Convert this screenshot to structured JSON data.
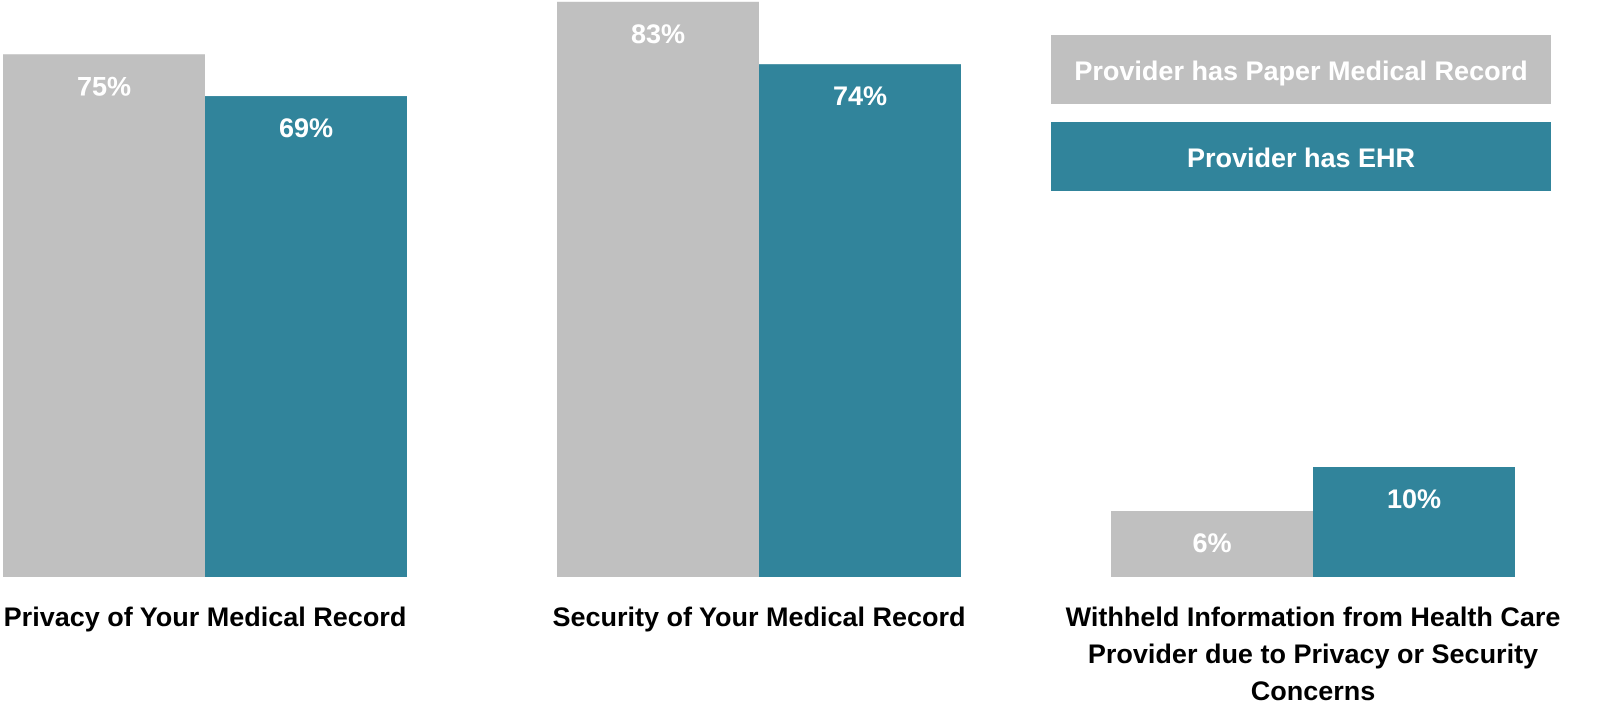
{
  "chart_data": {
    "type": "bar",
    "title": "",
    "xlabel": "",
    "ylabel": "",
    "categories": [
      [
        "Privacy of Your Medical Record"
      ],
      [
        "Security of Your Medical Record"
      ],
      [
        "Withheld Information from Health Care",
        "Provider due to Privacy or Security",
        "Concerns"
      ]
    ],
    "series": [
      {
        "name": "Provider has Paper Medical Record",
        "color": "#c0c0c0",
        "values": [
          75,
          83,
          6
        ],
        "labels": [
          "75%",
          "83%",
          "6%"
        ]
      },
      {
        "name": "Provider has EHR",
        "color": "#31849b",
        "values": [
          69,
          74,
          10
        ],
        "labels": [
          "69%",
          "74%",
          "10%"
        ]
      }
    ],
    "ylim": [
      0,
      83
    ],
    "grid": false,
    "legend": "top-right",
    "scale_note": "The third group's bars appear drawn on a separate scale from the first two groups."
  }
}
